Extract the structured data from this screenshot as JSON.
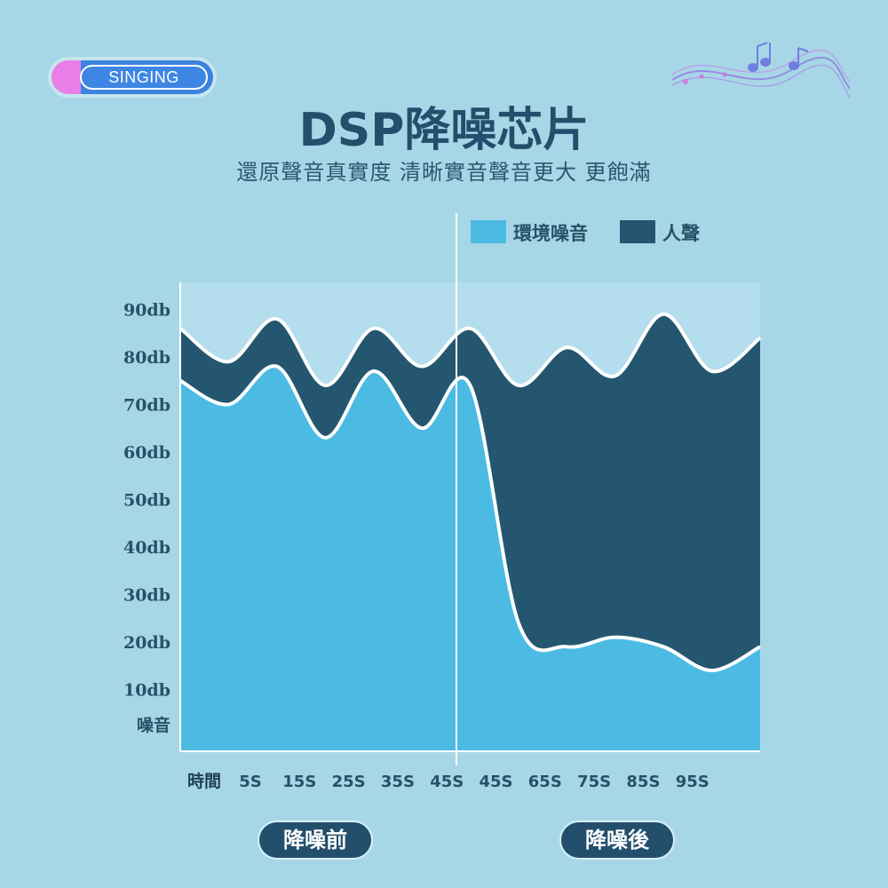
{
  "badge": {
    "label": "SINGING"
  },
  "header": {
    "title": "DSP降噪芯片",
    "subtitle": "還原聲音真實度  清晰實音聲音更大 更飽滿"
  },
  "colors": {
    "background": "#a7d7e7",
    "ambient_noise": "#4bbbe3",
    "voice": "#24576f",
    "outline": "#ffffff",
    "axis_text": "#2a5068"
  },
  "icons": {
    "decoration": "music-notes-icon"
  },
  "chart_data": {
    "type": "area",
    "legend_position": "top-right",
    "ylim": [
      0,
      95
    ],
    "y_ticks": [
      {
        "label": "90db",
        "value": 90
      },
      {
        "label": "80db",
        "value": 80
      },
      {
        "label": "70db",
        "value": 70
      },
      {
        "label": "60db",
        "value": 60
      },
      {
        "label": "50db",
        "value": 50
      },
      {
        "label": "40db",
        "value": 40
      },
      {
        "label": "30db",
        "value": 30
      },
      {
        "label": "20db",
        "value": 20
      },
      {
        "label": "10db",
        "value": 10
      },
      {
        "label": "噪音",
        "value": 0
      }
    ],
    "x_axis_label": "時間",
    "x_ticks": [
      "5S",
      "15S",
      "25S",
      "35S",
      "45S",
      "45S",
      "65S",
      "75S",
      "85S",
      "95S"
    ],
    "section_labels": [
      "降噪前",
      "降噪後"
    ],
    "series": [
      {
        "name": "環境噪音",
        "x": [
          0,
          1,
          2,
          3,
          4,
          5,
          6,
          7,
          8,
          9,
          10,
          11,
          12
        ],
        "values": [
          78,
          73,
          81,
          66,
          80,
          68,
          77,
          27,
          22,
          24,
          22,
          17,
          22
        ]
      },
      {
        "name": "人聲",
        "x": [
          0,
          1,
          2,
          3,
          4,
          5,
          6,
          7,
          8,
          9,
          10,
          11,
          12
        ],
        "values": [
          89,
          82,
          91,
          77,
          89,
          81,
          89,
          77,
          85,
          79,
          92,
          80,
          87
        ]
      }
    ]
  }
}
